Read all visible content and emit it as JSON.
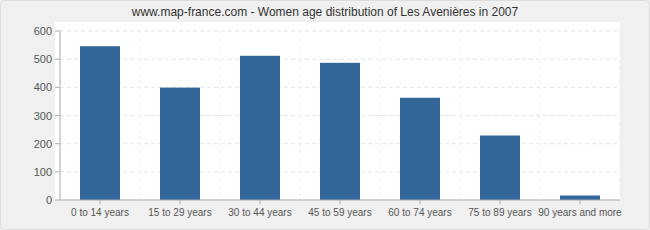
{
  "chart_data": {
    "type": "bar",
    "title": "www.map-france.com - Women age distribution of Les Avenières in 2007",
    "categories": [
      "0 to 14 years",
      "15 to 29 years",
      "30 to 44 years",
      "45 to 59 years",
      "60 to 74 years",
      "75 to 89 years",
      "90 years and more"
    ],
    "values": [
      546,
      399,
      512,
      487,
      363,
      229,
      16
    ],
    "color": "#336699",
    "ylim": [
      0,
      600
    ],
    "yticks": [
      0,
      100,
      200,
      300,
      400,
      500,
      600
    ],
    "grid": true
  }
}
